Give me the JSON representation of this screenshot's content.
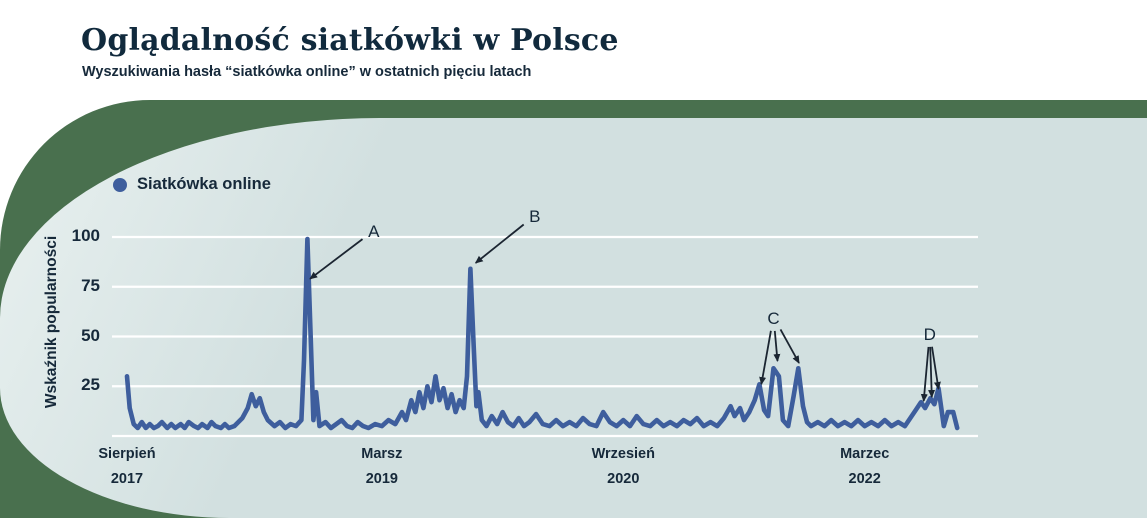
{
  "header": {
    "title": "Oglądalność siatkówki w Polsce",
    "subtitle": "Wyszukiwania hasła “siatkówka online” w ostatnich pięciu latach"
  },
  "legend": {
    "label": "Siatkówka online"
  },
  "colors": {
    "navy_text": "#16293a",
    "title_navy": "#112a3d",
    "line_blue": "#3e5e9d",
    "green_shape": "#49704e",
    "panel_blue": "#d2e0e0",
    "panel_blue_light": "#e9f1f0",
    "gridline": "#ffffff",
    "arrow": "#1b2531"
  },
  "chart_data": {
    "type": "line",
    "title": "Oglądalność siatkówki w Polsce",
    "series_name": "Siatkówka online",
    "ylabel": "Wskaźnik popularności",
    "ylim": [
      0,
      100
    ],
    "y_ticks": [
      100,
      75,
      50,
      25
    ],
    "grid": "horizontal-white",
    "legend_position": "top-left",
    "x_unit": "months since August 2017",
    "x_domain": [
      0,
      63
    ],
    "x_ticks": [
      {
        "month": "Sierpień",
        "year": "2017",
        "m": 0
      },
      {
        "month": "Marsz",
        "year": "2019",
        "m": 19
      },
      {
        "month": "Wrzesień",
        "year": "2020",
        "m": 37
      },
      {
        "month": "Marzec",
        "year": "2022",
        "m": 55
      }
    ],
    "points": [
      [
        0,
        30
      ],
      [
        0.2,
        14
      ],
      [
        0.5,
        6
      ],
      [
        0.8,
        4
      ],
      [
        1.1,
        7
      ],
      [
        1.4,
        4
      ],
      [
        1.7,
        6
      ],
      [
        2,
        4
      ],
      [
        2.3,
        5
      ],
      [
        2.6,
        7
      ],
      [
        3,
        4
      ],
      [
        3.3,
        6
      ],
      [
        3.6,
        4
      ],
      [
        4,
        6
      ],
      [
        4.3,
        4
      ],
      [
        4.6,
        7
      ],
      [
        5,
        5
      ],
      [
        5.3,
        4
      ],
      [
        5.6,
        6
      ],
      [
        6,
        4
      ],
      [
        6.3,
        7
      ],
      [
        6.6,
        5
      ],
      [
        7,
        4
      ],
      [
        7.3,
        6
      ],
      [
        7.6,
        4
      ],
      [
        8,
        5
      ],
      [
        8.3,
        7
      ],
      [
        8.6,
        9
      ],
      [
        9,
        14
      ],
      [
        9.3,
        21
      ],
      [
        9.6,
        15
      ],
      [
        9.9,
        19
      ],
      [
        10.2,
        12
      ],
      [
        10.5,
        8
      ],
      [
        11,
        5
      ],
      [
        11.4,
        7
      ],
      [
        11.8,
        4
      ],
      [
        12.2,
        6
      ],
      [
        12.6,
        5
      ],
      [
        13,
        8
      ],
      [
        13.2,
        38
      ],
      [
        13.45,
        99
      ],
      [
        13.7,
        48
      ],
      [
        13.9,
        8
      ],
      [
        14.1,
        22
      ],
      [
        14.35,
        5
      ],
      [
        14.8,
        7
      ],
      [
        15.2,
        4
      ],
      [
        15.6,
        6
      ],
      [
        16,
        8
      ],
      [
        16.4,
        5
      ],
      [
        16.8,
        4
      ],
      [
        17.2,
        7
      ],
      [
        17.6,
        5
      ],
      [
        18,
        4
      ],
      [
        18.5,
        6
      ],
      [
        19,
        5
      ],
      [
        19.5,
        8
      ],
      [
        20,
        6
      ],
      [
        20.5,
        12
      ],
      [
        20.8,
        8
      ],
      [
        21.2,
        18
      ],
      [
        21.5,
        12
      ],
      [
        21.8,
        22
      ],
      [
        22.1,
        14
      ],
      [
        22.4,
        25
      ],
      [
        22.7,
        17
      ],
      [
        23,
        30
      ],
      [
        23.3,
        18
      ],
      [
        23.6,
        24
      ],
      [
        23.9,
        14
      ],
      [
        24.2,
        21
      ],
      [
        24.5,
        12
      ],
      [
        24.8,
        18
      ],
      [
        25.1,
        14
      ],
      [
        25.35,
        30
      ],
      [
        25.6,
        84
      ],
      [
        25.85,
        45
      ],
      [
        26.05,
        15
      ],
      [
        26.2,
        22
      ],
      [
        26.45,
        8
      ],
      [
        26.8,
        5
      ],
      [
        27.2,
        10
      ],
      [
        27.6,
        6
      ],
      [
        28,
        12
      ],
      [
        28.4,
        7
      ],
      [
        28.8,
        5
      ],
      [
        29.2,
        9
      ],
      [
        29.6,
        5
      ],
      [
        30,
        7
      ],
      [
        30.5,
        11
      ],
      [
        31,
        6
      ],
      [
        31.5,
        5
      ],
      [
        32,
        8
      ],
      [
        32.5,
        5
      ],
      [
        33,
        7
      ],
      [
        33.5,
        5
      ],
      [
        34,
        9
      ],
      [
        34.5,
        6
      ],
      [
        35,
        5
      ],
      [
        35.5,
        12
      ],
      [
        36,
        7
      ],
      [
        36.5,
        5
      ],
      [
        37,
        8
      ],
      [
        37.5,
        5
      ],
      [
        38,
        10
      ],
      [
        38.5,
        6
      ],
      [
        39,
        5
      ],
      [
        39.5,
        8
      ],
      [
        40,
        5
      ],
      [
        40.5,
        7
      ],
      [
        41,
        5
      ],
      [
        41.5,
        8
      ],
      [
        42,
        6
      ],
      [
        42.5,
        9
      ],
      [
        43,
        5
      ],
      [
        43.5,
        7
      ],
      [
        44,
        5
      ],
      [
        44.5,
        9
      ],
      [
        45,
        15
      ],
      [
        45.3,
        10
      ],
      [
        45.7,
        14
      ],
      [
        46,
        8
      ],
      [
        46.4,
        12
      ],
      [
        46.8,
        18
      ],
      [
        47.15,
        26
      ],
      [
        47.5,
        13
      ],
      [
        47.8,
        10
      ],
      [
        48.2,
        34
      ],
      [
        48.6,
        30
      ],
      [
        48.9,
        8
      ],
      [
        49.3,
        5
      ],
      [
        49.7,
        20
      ],
      [
        50.05,
        34
      ],
      [
        50.4,
        15
      ],
      [
        50.7,
        7
      ],
      [
        51,
        5
      ],
      [
        51.5,
        7
      ],
      [
        52,
        5
      ],
      [
        52.5,
        8
      ],
      [
        53,
        5
      ],
      [
        53.5,
        7
      ],
      [
        54,
        5
      ],
      [
        54.5,
        8
      ],
      [
        55,
        5
      ],
      [
        55.5,
        7
      ],
      [
        56,
        5
      ],
      [
        56.5,
        8
      ],
      [
        57,
        5
      ],
      [
        57.5,
        7
      ],
      [
        58,
        5
      ],
      [
        58.4,
        9
      ],
      [
        58.8,
        13
      ],
      [
        59.2,
        17
      ],
      [
        59.5,
        14
      ],
      [
        59.9,
        19
      ],
      [
        60.2,
        16
      ],
      [
        60.5,
        24
      ],
      [
        60.9,
        5
      ],
      [
        61.2,
        12
      ],
      [
        61.6,
        12
      ],
      [
        61.9,
        4
      ]
    ],
    "annotations": [
      {
        "label": "A",
        "lx": 18.4,
        "lv": 102.5,
        "tips": [
          [
            13.65,
            79
          ]
        ]
      },
      {
        "label": "B",
        "lx": 30.4,
        "lv": 110,
        "tips": [
          [
            26.0,
            87
          ]
        ]
      },
      {
        "label": "C",
        "lx": 48.2,
        "lv": 58.8,
        "tips": [
          [
            47.3,
            26.1
          ],
          [
            48.5,
            37.7
          ],
          [
            50.1,
            36.7
          ]
        ]
      },
      {
        "label": "D",
        "lx": 59.85,
        "lv": 50.8,
        "tips": [
          [
            59.4,
            17.6
          ],
          [
            60.0,
            19.6
          ],
          [
            60.5,
            23.6
          ]
        ]
      }
    ]
  }
}
